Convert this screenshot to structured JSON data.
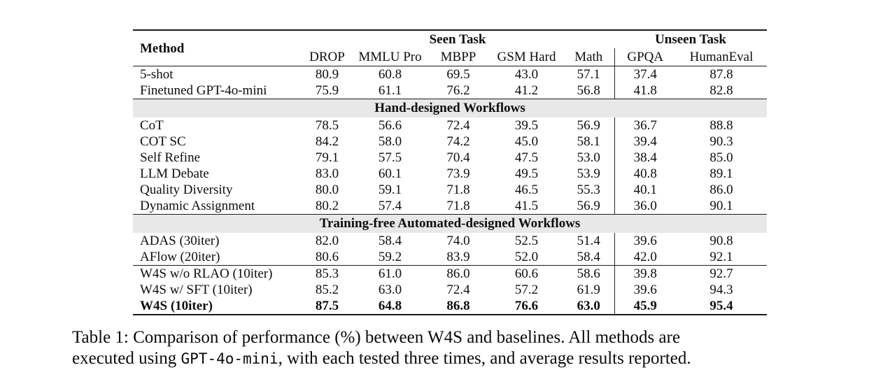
{
  "colors": {
    "section_band": "#e8e8e8",
    "rule": "#1a1a1a"
  },
  "table": {
    "header": {
      "method_label": "Method",
      "seen_task_label": "Seen Task",
      "unseen_task_label": "Unseen Task",
      "columns": [
        "DROP",
        "MMLU Pro",
        "MBPP",
        "GSM Hard",
        "Math",
        "GPQA",
        "HumanEval"
      ]
    },
    "sections": [
      {
        "title": "",
        "rule_above": false,
        "rows": [
          {
            "method": "5-shot",
            "values": [
              "80.9",
              "60.8",
              "69.5",
              "43.0",
              "57.1",
              "37.4",
              "87.8"
            ],
            "bold": false
          },
          {
            "method": "Finetuned GPT-4o-mini",
            "values": [
              "75.9",
              "61.1",
              "76.2",
              "41.2",
              "56.8",
              "41.8",
              "82.8"
            ],
            "bold": false
          }
        ]
      },
      {
        "title": "Hand-designed Workflows",
        "rule_above": true,
        "rows": [
          {
            "method": "CoT",
            "values": [
              "78.5",
              "56.6",
              "72.4",
              "39.5",
              "56.9",
              "36.7",
              "88.8"
            ],
            "bold": false
          },
          {
            "method": "COT SC",
            "values": [
              "84.2",
              "58.0",
              "74.2",
              "45.0",
              "58.1",
              "39.4",
              "90.3"
            ],
            "bold": false
          },
          {
            "method": "Self Refine",
            "values": [
              "79.1",
              "57.5",
              "70.4",
              "47.5",
              "53.0",
              "38.4",
              "85.0"
            ],
            "bold": false
          },
          {
            "method": "LLM Debate",
            "values": [
              "83.0",
              "60.1",
              "73.9",
              "49.5",
              "53.9",
              "40.8",
              "89.1"
            ],
            "bold": false
          },
          {
            "method": "Quality Diversity",
            "values": [
              "80.0",
              "59.1",
              "71.8",
              "46.5",
              "55.3",
              "40.1",
              "86.0"
            ],
            "bold": false
          },
          {
            "method": "Dynamic Assignment",
            "values": [
              "80.2",
              "57.4",
              "71.8",
              "41.5",
              "56.9",
              "36.0",
              "90.1"
            ],
            "bold": false
          }
        ]
      },
      {
        "title": "Training-free Automated-designed Workflows",
        "rule_above": true,
        "rows": [
          {
            "method": "ADAS (30iter)",
            "values": [
              "82.0",
              "58.4",
              "74.0",
              "52.5",
              "51.4",
              "39.6",
              "90.8"
            ],
            "bold": false
          },
          {
            "method": "AFlow (20iter)",
            "values": [
              "80.6",
              "59.2",
              "83.9",
              "52.0",
              "58.4",
              "42.0",
              "92.1"
            ],
            "bold": false
          }
        ]
      },
      {
        "title": "",
        "rule_above": true,
        "rows": [
          {
            "method": "W4S w/o RLAO (10iter)",
            "values": [
              "85.3",
              "61.0",
              "86.0",
              "60.6",
              "58.6",
              "39.8",
              "92.7"
            ],
            "bold": false
          },
          {
            "method": "W4S w/ SFT (10iter)",
            "values": [
              "85.2",
              "63.0",
              "72.4",
              "57.2",
              "61.9",
              "39.6",
              "94.3"
            ],
            "bold": false
          },
          {
            "method": "W4S (10iter)",
            "values": [
              "87.5",
              "64.8",
              "86.8",
              "76.6",
              "63.0",
              "45.9",
              "95.4"
            ],
            "bold": true
          }
        ]
      }
    ]
  },
  "caption": {
    "line1": "Table 1: Comparison of performance (%) between W4S and baselines. All methods are",
    "line2_pre": "executed using ",
    "line2_code": "GPT-4o-mini",
    "line2_post": ", with each tested three times, and average results reported."
  }
}
